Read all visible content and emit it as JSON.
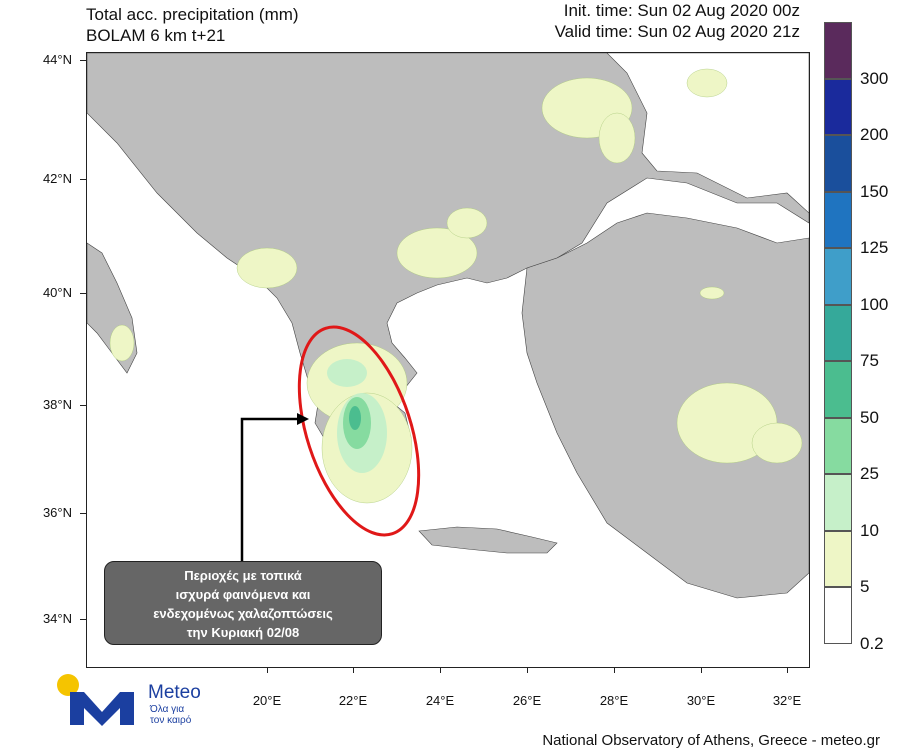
{
  "header": {
    "title_line1": "Total acc. precipitation (mm)",
    "title_line2": "BOLAM 6 km t+21",
    "init_time": "Init. time: Sun 02 Aug 2020 00z",
    "valid_time": "Valid time: Sun 02 Aug 2020 21z"
  },
  "axes": {
    "lat_labels": [
      "44°N",
      "42°N",
      "40°N",
      "38°N",
      "36°N",
      "34°N"
    ],
    "lon_labels": [
      "20°E",
      "22°E",
      "24°E",
      "26°E",
      "28°E",
      "30°E",
      "32°E"
    ]
  },
  "colorbar": {
    "labels": [
      "300",
      "200",
      "150",
      "125",
      "100",
      "75",
      "50",
      "25",
      "10",
      "5",
      "0.2"
    ],
    "colors": [
      "#5a2a5c",
      "#1a2a9c",
      "#1a4f9c",
      "#1f74c0",
      "#3f9ec9",
      "#35a99a",
      "#4bbd8f",
      "#86dba0",
      "#c6f0c9",
      "#eef6c6",
      "#ffffff"
    ]
  },
  "map": {
    "land_color": "#bdbdbd",
    "sea_color": "#ffffff",
    "highlight_color": "#e01818"
  },
  "callout": {
    "line1": "Περιοχές με τοπικά",
    "line2": "ισχυρά φαινόμενα και",
    "line3": "ενδεχομένως χαλαζοπτώσεις",
    "line4": "την Κυριακή 02/08"
  },
  "logo": {
    "name": "Meteo",
    "tagline_line1": "Όλα για",
    "tagline_line2": "τον καιρό"
  },
  "footer": {
    "credit": "National Observatory of Athens, Greece - meteo.gr"
  }
}
